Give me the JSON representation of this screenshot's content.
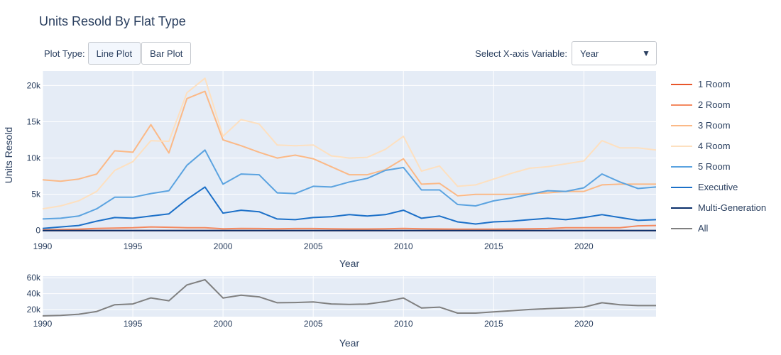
{
  "title": "Units Resold By Flat Type",
  "controls": {
    "plot_type_label": "Plot Type:",
    "buttons": [
      {
        "label": "Line Plot",
        "active": true
      },
      {
        "label": "Bar Plot",
        "active": false
      }
    ],
    "xaxis_label": "Select X-axis Variable:",
    "xaxis_selected": "Year"
  },
  "chart_data": [
    {
      "type": "line",
      "xlabel": "Year",
      "ylabel": "Units Resold",
      "xlim": [
        1990,
        2024
      ],
      "ylim": [
        -1200,
        22000
      ],
      "xticks": [
        1990,
        1995,
        2000,
        2005,
        2010,
        2015,
        2020
      ],
      "yticks": [
        0,
        5000,
        10000,
        15000,
        20000
      ],
      "ytick_labels": [
        "0",
        "5k",
        "10k",
        "15k",
        "20k"
      ],
      "grid": true,
      "legend_position": "right",
      "x": [
        1990,
        1991,
        1992,
        1993,
        1994,
        1995,
        1996,
        1997,
        1998,
        1999,
        2000,
        2001,
        2002,
        2003,
        2004,
        2005,
        2006,
        2007,
        2008,
        2009,
        2010,
        2011,
        2012,
        2013,
        2014,
        2015,
        2016,
        2017,
        2018,
        2019,
        2020,
        2021,
        2022,
        2023,
        2024
      ],
      "series": [
        {
          "name": "1 Room",
          "color": "#e8562a",
          "values": [
            0,
            0,
            0,
            0,
            0,
            0,
            0,
            0,
            0,
            0,
            0,
            0,
            0,
            0,
            0,
            0,
            0,
            0,
            0,
            0,
            0,
            0,
            0,
            0,
            0,
            0,
            0,
            0,
            0,
            0,
            0,
            0,
            0,
            0,
            0
          ]
        },
        {
          "name": "2 Room",
          "color": "#f4895f",
          "values": [
            100,
            150,
            200,
            300,
            350,
            400,
            500,
            450,
            400,
            400,
            250,
            300,
            280,
            250,
            280,
            280,
            250,
            220,
            220,
            250,
            300,
            250,
            220,
            200,
            200,
            200,
            220,
            250,
            280,
            400,
            400,
            400,
            400,
            650,
            700
          ]
        },
        {
          "name": "3 Room",
          "color": "#fbb987",
          "values": [
            7000,
            6800,
            7100,
            7800,
            11000,
            10800,
            14600,
            10700,
            18200,
            19200,
            12500,
            11700,
            10800,
            10000,
            10400,
            9900,
            8800,
            7700,
            7700,
            8400,
            9900,
            6400,
            6500,
            4800,
            5000,
            5000,
            5000,
            5100,
            5200,
            5400,
            5400,
            6300,
            6400,
            6400,
            6400
          ]
        },
        {
          "name": "4 Room",
          "color": "#fde0c0",
          "values": [
            3000,
            3400,
            4100,
            5400,
            8300,
            9500,
            12400,
            12300,
            19000,
            21000,
            13000,
            15300,
            14700,
            11800,
            11700,
            11800,
            10300,
            10000,
            10100,
            11200,
            13000,
            8200,
            8900,
            6100,
            6300,
            7100,
            7900,
            8600,
            8800,
            9200,
            9600,
            12400,
            11400,
            11400,
            11100
          ]
        },
        {
          "name": "5 Room",
          "color": "#5ba3e0",
          "values": [
            1600,
            1700,
            2000,
            3000,
            4600,
            4600,
            5100,
            5500,
            9000,
            11100,
            6400,
            7800,
            7700,
            5200,
            5100,
            6100,
            6000,
            6700,
            7200,
            8300,
            8700,
            5600,
            5600,
            3600,
            3400,
            4100,
            4500,
            5000,
            5500,
            5400,
            5900,
            7800,
            6700,
            5800,
            6000
          ]
        },
        {
          "name": "Executive",
          "color": "#1c70c8",
          "values": [
            300,
            500,
            700,
            1300,
            1800,
            1700,
            2000,
            2300,
            4300,
            6000,
            2400,
            2800,
            2600,
            1600,
            1500,
            1800,
            1900,
            2200,
            2000,
            2200,
            2800,
            1700,
            2000,
            1200,
            900,
            1200,
            1300,
            1500,
            1700,
            1500,
            1800,
            2200,
            1800,
            1400,
            1500
          ]
        },
        {
          "name": "Multi-Generation",
          "color": "#0a2f6b",
          "values": [
            0,
            0,
            0,
            0,
            0,
            0,
            0,
            0,
            0,
            0,
            0,
            0,
            0,
            0,
            0,
            0,
            0,
            0,
            0,
            0,
            0,
            0,
            0,
            0,
            0,
            0,
            0,
            0,
            0,
            0,
            0,
            0,
            0,
            0,
            0
          ]
        }
      ]
    },
    {
      "type": "line",
      "xlabel": "Year",
      "ylabel": "",
      "xlim": [
        1990,
        2024
      ],
      "ylim": [
        11000,
        62000
      ],
      "xticks": [
        1990,
        1995,
        2000,
        2005,
        2010,
        2015,
        2020
      ],
      "yticks": [
        20000,
        40000,
        60000
      ],
      "ytick_labels": [
        "20k",
        "40k",
        "60k"
      ],
      "grid": true,
      "x": [
        1990,
        1991,
        1992,
        1993,
        1994,
        1995,
        1996,
        1997,
        1998,
        1999,
        2000,
        2001,
        2002,
        2003,
        2004,
        2005,
        2006,
        2007,
        2008,
        2009,
        2010,
        2011,
        2012,
        2013,
        2014,
        2015,
        2016,
        2017,
        2018,
        2019,
        2020,
        2021,
        2022,
        2023,
        2024
      ],
      "series": [
        {
          "name": "All",
          "color": "#808080",
          "values": [
            12000,
            12500,
            14000,
            17500,
            26000,
            27000,
            34600,
            31000,
            51000,
            57500,
            34500,
            38000,
            36000,
            28500,
            28800,
            29500,
            27000,
            26500,
            26800,
            30000,
            34500,
            22000,
            23000,
            15500,
            15500,
            17000,
            18500,
            20000,
            21000,
            22000,
            23000,
            28500,
            26000,
            25000,
            25000
          ]
        }
      ]
    }
  ]
}
